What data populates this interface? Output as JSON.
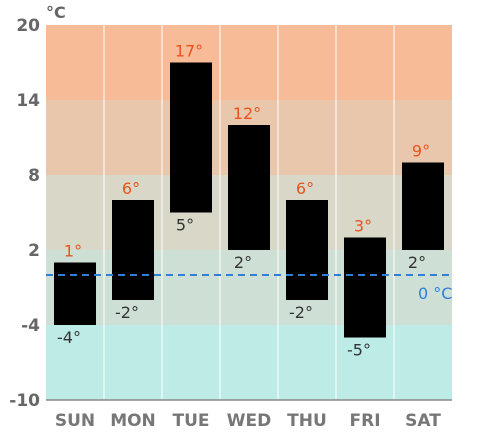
{
  "chart_data": {
    "type": "bar",
    "subtype": "floating-range",
    "unit_label": "°C",
    "ylim": [
      -10,
      20
    ],
    "yticks": [
      -10,
      -4,
      2,
      8,
      14,
      20
    ],
    "categories": [
      "SUN",
      "MON",
      "TUE",
      "WED",
      "THU",
      "FRI",
      "SAT"
    ],
    "highs": [
      1,
      6,
      17,
      12,
      6,
      3,
      9
    ],
    "lows": [
      -4,
      -2,
      5,
      2,
      -2,
      -5,
      2
    ],
    "high_labels": [
      "1°",
      "6°",
      "17°",
      "12°",
      "6°",
      "3°",
      "9°"
    ],
    "low_labels": [
      "-4°",
      "-2°",
      "5°",
      "2°",
      "-2°",
      "-5°",
      "2°"
    ],
    "reference_line": {
      "value": 0,
      "label": "0 °C",
      "style": "dashed"
    },
    "bands": [
      {
        "from": 14,
        "to": 20,
        "color": "#f8bb98"
      },
      {
        "from": 8,
        "to": 14,
        "color": "#e8c7ac"
      },
      {
        "from": 2,
        "to": 8,
        "color": "#d9d7c8"
      },
      {
        "from": -4,
        "to": 2,
        "color": "#cedfd6"
      },
      {
        "from": -10,
        "to": -4,
        "color": "#bdebe6"
      }
    ],
    "grid": true,
    "colors": {
      "bar": "#000000",
      "high_label": "#e8541c",
      "low_label": "#333333",
      "reference": "#2f7fd8",
      "axis_text": "#666666",
      "day_text": "#777777",
      "gridline": "#ffffff"
    }
  }
}
